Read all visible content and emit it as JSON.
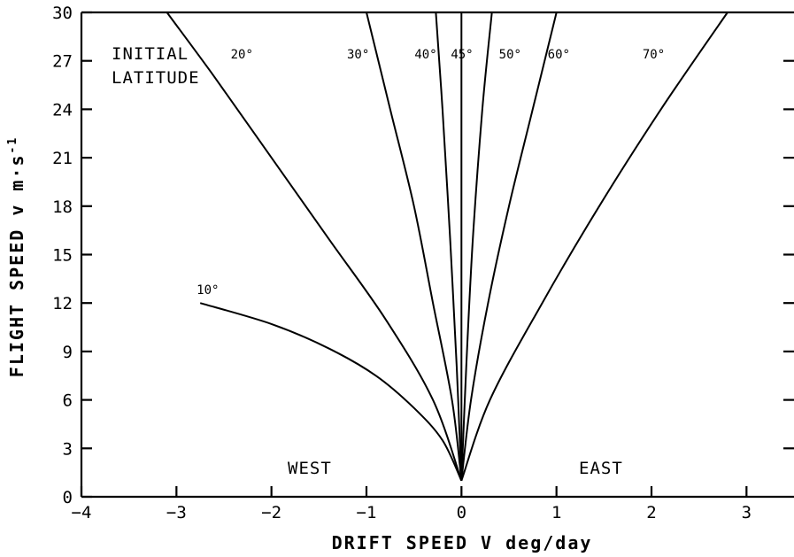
{
  "chart_data": {
    "type": "line",
    "title": "",
    "xlabel": "DRIFT  SPEED   V deg/day",
    "ylabel": "FLIGHT  SPEED  v m·s",
    "ylabel_sup": "-1",
    "xlim": [
      -4,
      3.5
    ],
    "ylim": [
      0,
      30
    ],
    "x_ticks": [
      -4,
      -3,
      -2,
      -1,
      0,
      1,
      2,
      3
    ],
    "x_tick_labels": [
      "−4",
      "−3",
      "−2",
      "−1",
      "0",
      "1",
      "2",
      "3"
    ],
    "y_ticks": [
      0,
      3,
      6,
      9,
      12,
      15,
      18,
      21,
      24,
      27,
      30
    ],
    "y_tick_labels": [
      "0",
      "3",
      "6",
      "9",
      "12",
      "15",
      "18",
      "21",
      "24",
      "27",
      "30"
    ],
    "annotations": {
      "initial_latitude_line1": "INITIAL",
      "initial_latitude_line2": "LATITUDE",
      "west": "WEST",
      "east": "EAST"
    },
    "series": [
      {
        "name": "10°",
        "x": [
          0,
          -0.2,
          -0.5,
          -0.9,
          -1.4,
          -2.0,
          -2.75
        ],
        "y": [
          1,
          3.5,
          5.5,
          7.5,
          9.2,
          10.7,
          12
        ]
      },
      {
        "name": "20°",
        "x": [
          0,
          -0.3,
          -0.8,
          -1.4,
          -2.0,
          -2.6,
          -3.1
        ],
        "y": [
          1,
          6,
          11,
          16,
          21,
          26,
          30
        ]
      },
      {
        "name": "30°",
        "x": [
          0,
          -0.1,
          -0.3,
          -0.5,
          -0.75,
          -1.0
        ],
        "y": [
          1,
          6,
          12,
          18,
          24,
          30
        ]
      },
      {
        "name": "40°",
        "x": [
          0,
          -0.05,
          -0.12,
          -0.2,
          -0.27
        ],
        "y": [
          1,
          8,
          16,
          24,
          30
        ]
      },
      {
        "name": "45°",
        "x": [
          0,
          0,
          0,
          0
        ],
        "y": [
          1,
          10,
          20,
          30
        ]
      },
      {
        "name": "50°",
        "x": [
          0,
          0.05,
          0.12,
          0.22,
          0.32
        ],
        "y": [
          1,
          8,
          16,
          24,
          30
        ]
      },
      {
        "name": "60°",
        "x": [
          0,
          0.1,
          0.28,
          0.5,
          0.75,
          1.0
        ],
        "y": [
          1,
          6,
          12,
          18,
          24,
          30
        ]
      },
      {
        "name": "70°",
        "x": [
          0,
          0.3,
          0.85,
          1.45,
          2.1,
          2.8
        ],
        "y": [
          1,
          6,
          12,
          18,
          24,
          30
        ]
      }
    ],
    "grid": false,
    "legend": "none"
  }
}
